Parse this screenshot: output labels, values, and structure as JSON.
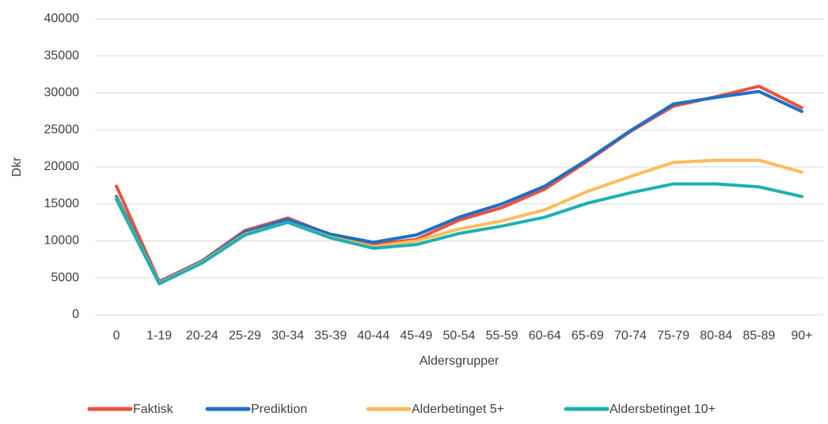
{
  "chart_data": {
    "type": "line",
    "y_label": "Dkr",
    "x_label": "Aldersgrupper",
    "categories": [
      "0",
      "1-19",
      "20-24",
      "25-29",
      "30-34",
      "35-39",
      "40-44",
      "45-49",
      "50-54",
      "55-59",
      "60-64",
      "65-69",
      "70-74",
      "75-79",
      "80-84",
      "85-89",
      "90+"
    ],
    "series": [
      {
        "name": "Faktisk",
        "color": "#e8533f",
        "values": [
          17400,
          4500,
          7300,
          11400,
          13100,
          10800,
          9500,
          10200,
          12800,
          14500,
          17000,
          20800,
          24800,
          28200,
          29500,
          30900,
          28000
        ]
      },
      {
        "name": "Prediktion",
        "color": "#1f6fc5",
        "values": [
          16000,
          4400,
          7200,
          11200,
          12900,
          10900,
          9800,
          10800,
          13200,
          15000,
          17400,
          21000,
          24900,
          28500,
          29400,
          30200,
          27500
        ]
      },
      {
        "name": "Alderbetinget 5+",
        "color": "#ffbb5c",
        "values": [
          15700,
          4300,
          7100,
          10900,
          12500,
          10500,
          9200,
          10000,
          11600,
          12700,
          14200,
          16700,
          18700,
          20600,
          20900,
          20900,
          19300
        ]
      },
      {
        "name": "Aldersbetinget 10+",
        "color": "#1fb0b0",
        "values": [
          15600,
          4200,
          7000,
          10800,
          12500,
          10400,
          9000,
          9500,
          11000,
          12000,
          13200,
          15100,
          16500,
          17700,
          17700,
          17300,
          16000
        ]
      }
    ],
    "ylim": [
      0,
      40000
    ],
    "yticks": [
      0,
      5000,
      10000,
      15000,
      20000,
      25000,
      30000,
      35000,
      40000
    ],
    "grid": true,
    "legend": "bottom"
  }
}
